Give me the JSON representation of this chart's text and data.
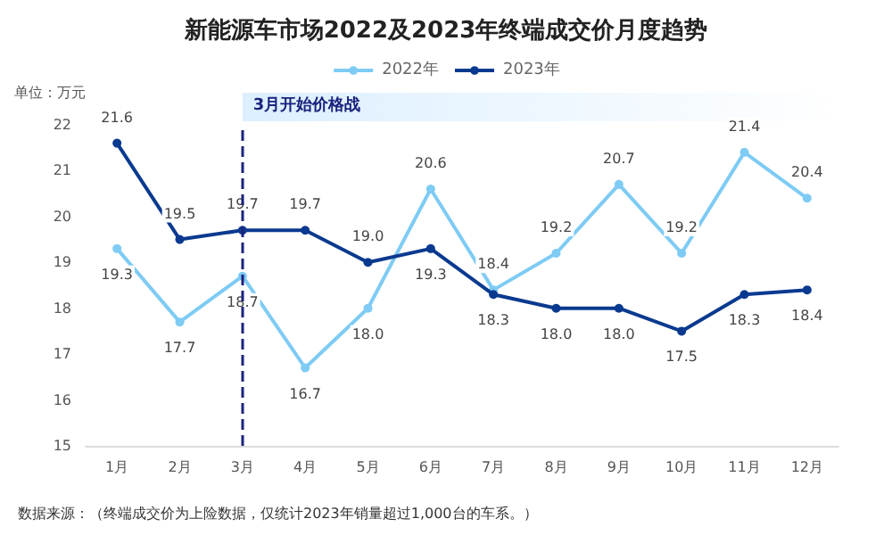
{
  "chart_data": {
    "type": "line",
    "title": "新能源车市场2022及2023年终端成交价月度趋势",
    "ylabel": "单位：万元",
    "categories": [
      "1月",
      "2月",
      "3月",
      "4月",
      "5月",
      "6月",
      "7月",
      "8月",
      "9月",
      "10月",
      "11月",
      "12月"
    ],
    "series": [
      {
        "name": "2022年",
        "color": "#7ecbf4",
        "values": [
          19.3,
          17.7,
          18.7,
          16.7,
          18.0,
          20.6,
          18.4,
          19.2,
          20.7,
          19.2,
          21.4,
          20.4
        ],
        "value_labels": [
          "19.3",
          "17.7",
          "18.7",
          "16.7",
          "18.0",
          "20.6",
          "18.4",
          "19.2",
          "20.7",
          "19.2",
          "21.4",
          "20.4"
        ]
      },
      {
        "name": "2023年",
        "color": "#0a3a8f",
        "values": [
          21.6,
          19.5,
          19.7,
          19.7,
          19.0,
          19.3,
          18.3,
          18.0,
          18.0,
          17.5,
          18.3,
          18.4
        ],
        "value_labels": [
          "21.6",
          "19.5",
          "19.7",
          "19.7",
          "19.0",
          "19.3",
          "18.3",
          "18.0",
          "18.0",
          "17.5",
          "18.3",
          "18.4"
        ]
      }
    ],
    "ylim": [
      15,
      22
    ],
    "yticks": [
      15,
      16,
      17,
      18,
      19,
      20,
      21,
      22
    ],
    "grid": false,
    "legend": "top",
    "marker": "circle",
    "line_style": "solid",
    "ref_lines": [
      {
        "axis": "x",
        "value": "3月",
        "label": "3月开始价格战",
        "color": "#1a237e",
        "line_style": "dashed"
      }
    ],
    "annotations": [
      "数据来源：（终端成交价为上险数据，仅统计2023年销量超过1,000台的车系。）"
    ]
  }
}
